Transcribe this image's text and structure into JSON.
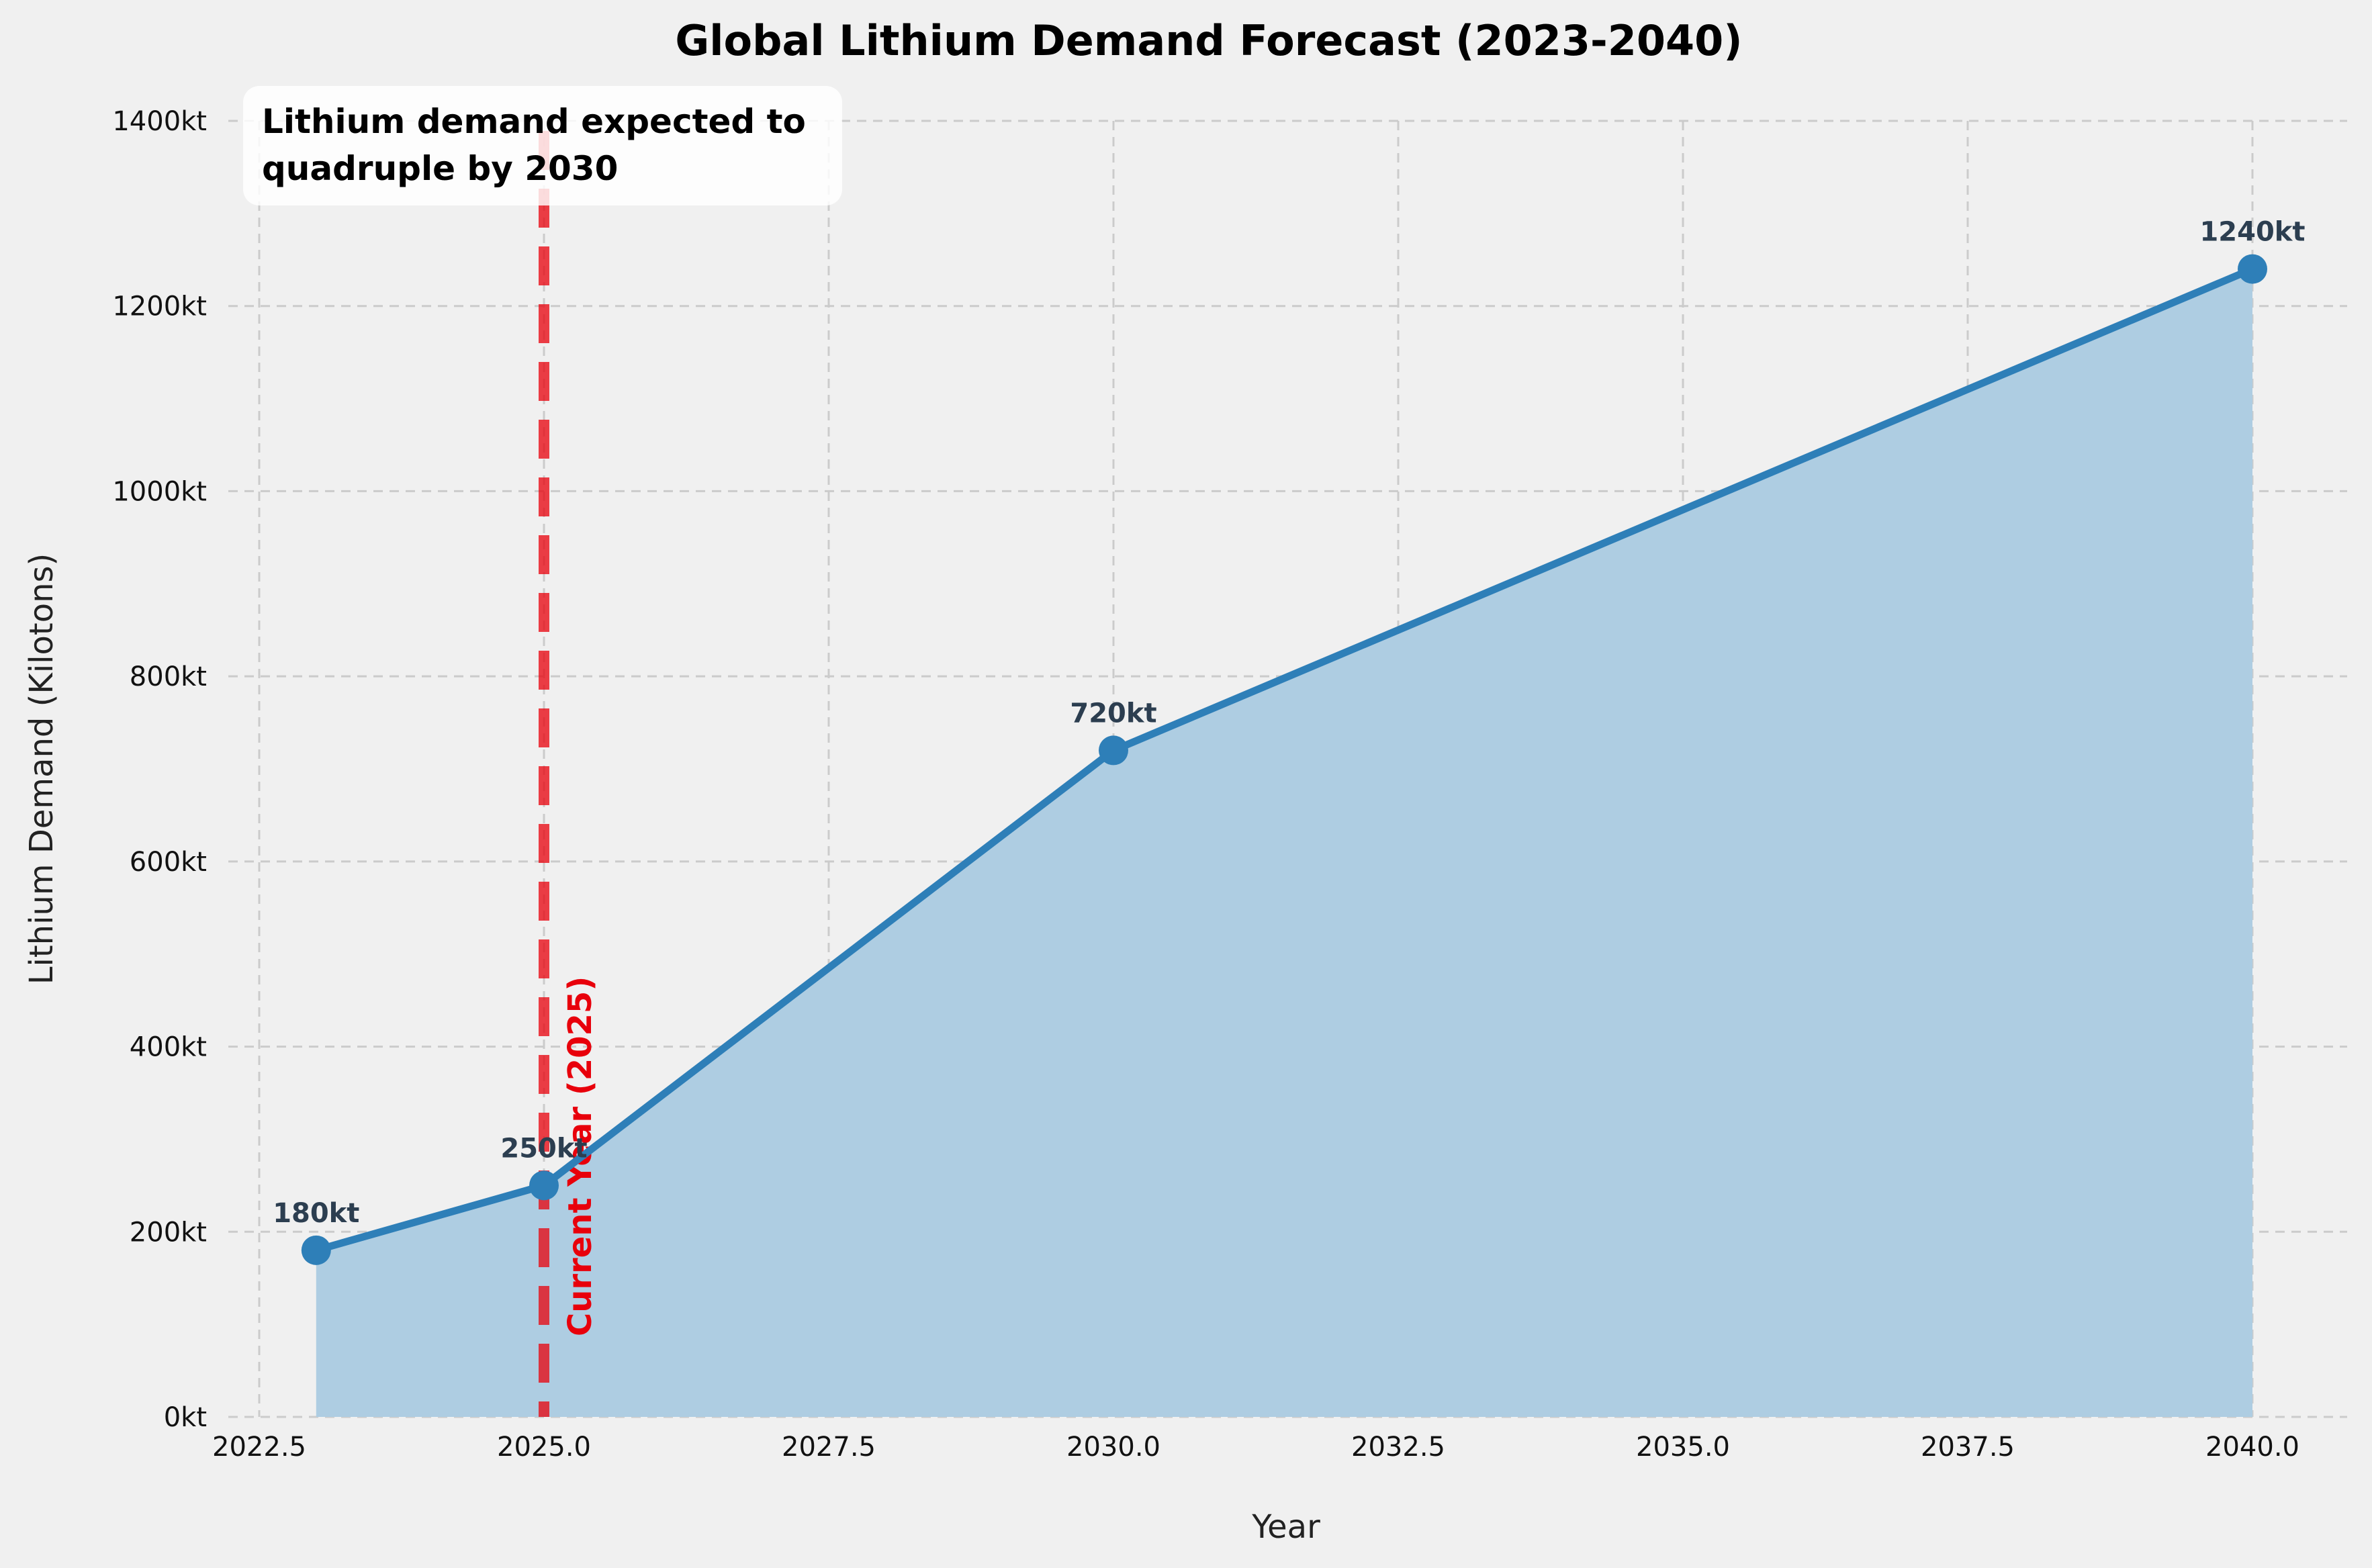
{
  "chart_data": {
    "type": "area",
    "title": "Global Lithium Demand Forecast (2023-2040)",
    "xlabel": "Year",
    "ylabel": "Lithium Demand (Kilotons)",
    "xlim": [
      2022.5,
      2041.0
    ],
    "ylim": [
      0,
      1400
    ],
    "x_ticks": [
      2022.5,
      2025.0,
      2027.5,
      2030.0,
      2032.5,
      2035.0,
      2037.5,
      2040.0
    ],
    "x_tick_labels": [
      "2022.5",
      "2025.0",
      "2027.5",
      "2030.0",
      "2032.5",
      "2035.0",
      "2037.5",
      "2040.0"
    ],
    "y_ticks": [
      0,
      200,
      400,
      600,
      800,
      1000,
      1200,
      1400
    ],
    "y_tick_labels": [
      "0kt",
      "200kt",
      "400kt",
      "600kt",
      "800kt",
      "1000kt",
      "1200kt",
      "1400kt"
    ],
    "grid": true,
    "series": [
      {
        "x": [
          2023,
          2025,
          2030,
          2040
        ],
        "values": [
          180,
          250,
          720,
          1240
        ],
        "data_labels": [
          "180kt",
          "250kt",
          "720kt",
          "1240kt"
        ],
        "color": "#2e7fb8",
        "fill_color": "#aecde2"
      }
    ],
    "reference_line": {
      "x": 2025,
      "label": "Current Year (2025)",
      "color": "#e8000b",
      "style": "dashed"
    },
    "annotation": {
      "lines": [
        "Lithium demand expected to",
        "quadruple by 2030"
      ]
    }
  }
}
